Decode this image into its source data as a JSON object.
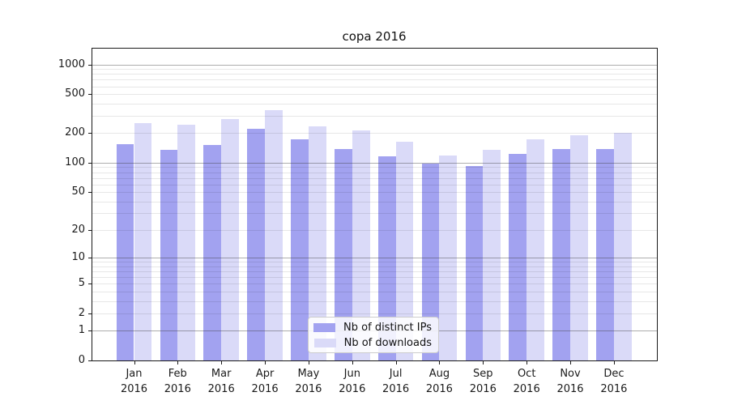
{
  "chart_data": {
    "type": "bar",
    "title": "copa 2016",
    "categories": [
      "Jan",
      "Feb",
      "Mar",
      "Apr",
      "May",
      "Jun",
      "Jul",
      "Aug",
      "Sep",
      "Oct",
      "Nov",
      "Dec"
    ],
    "x_year_label": "2016",
    "series": [
      {
        "name": "Nb of distinct IPs",
        "color": "#a2a2f0",
        "values": [
          155,
          135,
          153,
          222,
          172,
          139,
          117,
          97,
          93,
          123,
          139,
          139
        ]
      },
      {
        "name": "Nb of downloads",
        "color": "#dadaf8",
        "values": [
          253,
          243,
          279,
          344,
          235,
          213,
          165,
          118,
          136,
          173,
          189,
          203
        ]
      }
    ],
    "yscale": "log10(value+1)",
    "y_ticks": [
      0,
      1,
      2,
      5,
      10,
      20,
      50,
      100,
      200,
      500,
      1000
    ],
    "y_minor_ticks": [
      3,
      4,
      6,
      7,
      8,
      9,
      30,
      40,
      60,
      70,
      80,
      90,
      300,
      400,
      600,
      700,
      800,
      900
    ],
    "ylim": [
      0,
      1430
    ],
    "grid": true,
    "legend_position": "lower center",
    "colors": {
      "major_grid": "#adadad",
      "minor_grid": "#e6e6e6",
      "axis": "#1a1a1a",
      "background": "#ffffff"
    }
  }
}
